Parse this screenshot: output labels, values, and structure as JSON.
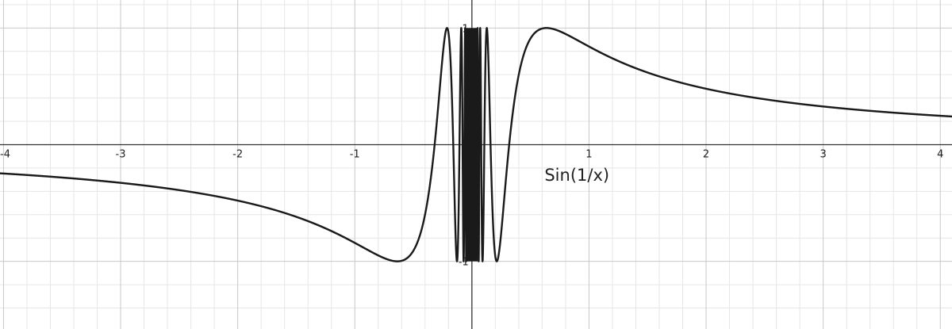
{
  "chart_data": {
    "type": "line",
    "title": "",
    "xlabel": "",
    "ylabel": "",
    "xlim": [
      -4.03,
      4.1
    ],
    "ylim": [
      -1.58,
      1.24
    ],
    "grid": true,
    "x_ticks": [
      -4,
      -3,
      -2,
      -1,
      1,
      2,
      3,
      4
    ],
    "x_tick_labels": [
      "-4",
      "-3",
      "-2",
      "-1",
      "1",
      "2",
      "3",
      "4"
    ],
    "y_ticks": [
      1,
      -1
    ],
    "y_tick_labels": [
      "1",
      "-1"
    ],
    "series": [
      {
        "name": "Sin(1/x)",
        "function": "sin(1/x)",
        "color": "#1a1a1a"
      }
    ],
    "annotations": [
      {
        "text": "Sin(1/x)",
        "x": 0.62,
        "y": -0.31
      }
    ],
    "colors": {
      "minor_grid": "#e6e6e6",
      "major_grid": "#c8c8c8",
      "axis": "#333333",
      "curve": "#1a1a1a"
    }
  }
}
